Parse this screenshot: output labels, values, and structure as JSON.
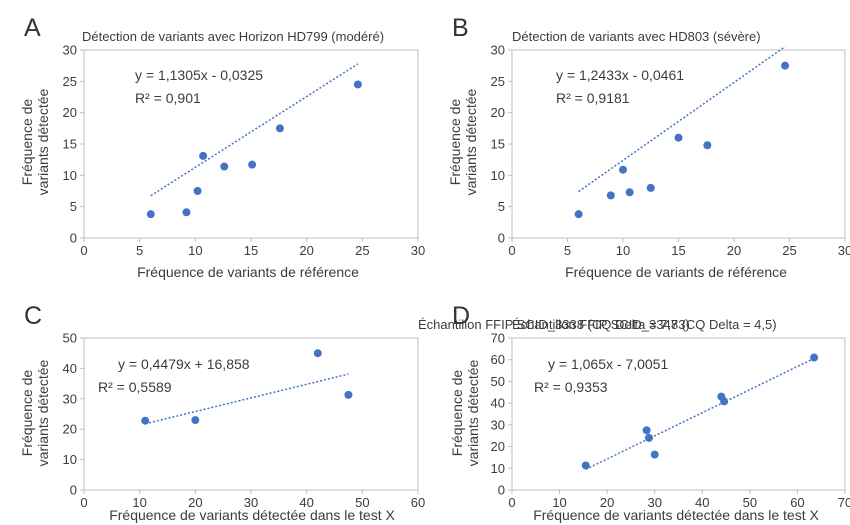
{
  "chart_data": [
    {
      "letter": "A",
      "type": "scatter",
      "title": "Détection de variants avec Horizon HD799 (modéré)",
      "xlabel": "Fréquence de variants de référence",
      "ylabel": [
        "Fréquence de",
        "variants détectée"
      ],
      "xlim": [
        0,
        30
      ],
      "ylim": [
        0,
        30
      ],
      "xticks": [
        0,
        5,
        10,
        15,
        20,
        25,
        30
      ],
      "yticks": [
        0,
        5,
        10,
        15,
        20,
        25,
        30
      ],
      "points": [
        [
          6,
          3.8
        ],
        [
          9.2,
          4.1
        ],
        [
          10.2,
          7.5
        ],
        [
          10.7,
          13.1
        ],
        [
          12.6,
          11.4
        ],
        [
          15.1,
          11.7
        ],
        [
          17.6,
          17.5
        ],
        [
          24.6,
          24.5
        ]
      ],
      "trendline": {
        "slope": 1.1305,
        "intercept": -0.0325,
        "x_range": [
          6,
          24.6
        ]
      },
      "equation": "y = 1,1305x - 0,0325",
      "r2": "R² = 0,901",
      "grid": false,
      "marker_color": "#4472c4",
      "trend_color": "#4472c4"
    },
    {
      "letter": "B",
      "type": "scatter",
      "title": "Détection de variants avec HD803 (sévère)",
      "xlabel": "Fréquence de variants de référence",
      "ylabel": [
        "Fréquence de",
        "variants détectée"
      ],
      "xlim": [
        0,
        30
      ],
      "ylim": [
        0,
        30
      ],
      "xticks": [
        0,
        5,
        10,
        15,
        20,
        25,
        30
      ],
      "yticks": [
        0,
        5,
        10,
        15,
        20,
        25,
        30
      ],
      "points": [
        [
          6,
          3.8
        ],
        [
          8.9,
          6.8
        ],
        [
          10,
          10.9
        ],
        [
          10.6,
          7.3
        ],
        [
          12.5,
          8
        ],
        [
          15,
          16
        ],
        [
          17.6,
          14.8
        ],
        [
          24.6,
          27.5
        ]
      ],
      "trendline": {
        "slope": 1.2433,
        "intercept": -0.0461,
        "x_range": [
          6,
          24.6
        ]
      },
      "equation": "y = 1,2433x - 0,0461",
      "r2": "R² = 0,9181",
      "grid": false,
      "marker_color": "#4472c4",
      "trend_color": "#4472c4"
    },
    {
      "letter": "C",
      "type": "scatter",
      "title": "Échantillon FFIP SCID_3338 (CQ Delta = 7,83)",
      "xlabel": "Fréquence de variants détectée dans le test X",
      "ylabel": [
        "Fréquence de",
        "variants détectée"
      ],
      "xlim": [
        0,
        60
      ],
      "ylim": [
        0,
        50
      ],
      "xticks": [
        0,
        10,
        20,
        30,
        40,
        50,
        60
      ],
      "yticks": [
        0,
        10,
        20,
        30,
        40,
        50
      ],
      "points": [
        [
          11,
          22.8
        ],
        [
          20,
          23
        ],
        [
          42,
          45
        ],
        [
          47.5,
          31.3
        ]
      ],
      "trendline": {
        "slope": 0.4479,
        "intercept": 16.858,
        "x_range": [
          11,
          47.5
        ]
      },
      "equation": "y = 0,4479x + 16,858",
      "r2": "R² = 0,5589",
      "grid": false,
      "marker_color": "#4472c4",
      "trend_color": "#4472c4"
    },
    {
      "letter": "D",
      "type": "scatter",
      "title": "Échantillon FFIP SCID_3347 (CQ Delta = 4,5)",
      "xlabel": "Fréquence de variants détectée dans le test X",
      "ylabel": [
        "Fréquence de",
        "variants détectée"
      ],
      "xlim": [
        0,
        70
      ],
      "ylim": [
        0,
        70
      ],
      "xticks": [
        0,
        10,
        20,
        30,
        40,
        50,
        60,
        70
      ],
      "yticks": [
        0,
        10,
        20,
        30,
        40,
        50,
        60,
        70
      ],
      "points": [
        [
          15.5,
          11.3
        ],
        [
          28.3,
          27.5
        ],
        [
          28.8,
          24
        ],
        [
          30,
          16.3
        ],
        [
          44,
          43
        ],
        [
          44.6,
          40.8
        ],
        [
          63.5,
          61
        ]
      ],
      "trendline": {
        "slope": 1.065,
        "intercept": -7.0051,
        "x_range": [
          15.5,
          63.5
        ]
      },
      "equation": "y = 1,065x - 7,0051",
      "r2": "R² = 0,9353",
      "grid": false,
      "marker_color": "#4472c4",
      "trend_color": "#4472c4"
    }
  ]
}
